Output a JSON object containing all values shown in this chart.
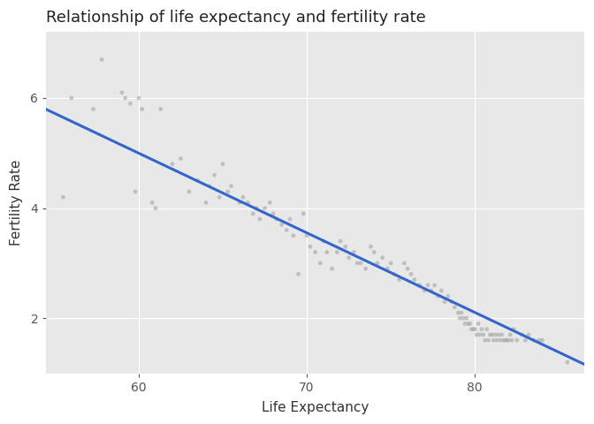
{
  "title": "Relationship of life expectancy and fertility rate",
  "xlabel": "Life Expectancy",
  "ylabel": "Fertility Rate",
  "xlim": [
    54.5,
    86.5
  ],
  "ylim": [
    1.0,
    7.2
  ],
  "xticks": [
    60,
    70,
    80
  ],
  "yticks": [
    2,
    4,
    6
  ],
  "background_color": "#E8E8E8",
  "outer_bg": "#FFFFFF",
  "grid_color": "#FFFFFF",
  "point_color": "#AAAAAA",
  "point_size": 12,
  "point_alpha": 0.65,
  "line_color": "#3366CC",
  "line_width": 2.2,
  "title_fontsize": 13,
  "axis_label_fontsize": 11,
  "tick_fontsize": 10,
  "reg_slope": -0.1447,
  "reg_intercept": 13.68,
  "scatter_x": [
    55.5,
    56.0,
    57.3,
    57.8,
    59.0,
    59.2,
    59.5,
    59.8,
    60.0,
    60.2,
    60.8,
    61.0,
    61.3,
    62.0,
    62.5,
    63.0,
    63.5,
    64.0,
    64.2,
    64.5,
    64.8,
    65.0,
    65.3,
    65.5,
    66.0,
    66.2,
    66.5,
    66.8,
    67.0,
    67.2,
    67.5,
    67.8,
    68.0,
    68.2,
    68.5,
    68.8,
    69.0,
    69.2,
    69.5,
    69.8,
    70.0,
    70.2,
    70.5,
    70.8,
    71.0,
    71.2,
    71.5,
    71.8,
    72.0,
    72.3,
    72.5,
    72.8,
    73.0,
    73.2,
    73.5,
    73.8,
    74.0,
    74.2,
    74.5,
    74.8,
    75.0,
    75.2,
    75.5,
    75.8,
    76.0,
    76.2,
    76.4,
    76.7,
    77.0,
    77.2,
    77.4,
    77.6,
    77.8,
    78.0,
    78.2,
    78.4,
    78.6,
    78.8,
    79.0,
    79.1,
    79.2,
    79.3,
    79.4,
    79.5,
    79.6,
    79.7,
    79.8,
    79.9,
    80.0,
    80.1,
    80.2,
    80.3,
    80.4,
    80.5,
    80.6,
    80.7,
    80.8,
    80.9,
    81.0,
    81.1,
    81.2,
    81.3,
    81.4,
    81.5,
    81.6,
    81.7,
    81.8,
    81.9,
    82.0,
    82.1,
    82.2,
    82.3,
    82.5,
    82.8,
    83.0,
    83.2,
    83.5,
    83.8,
    84.0,
    85.5
  ],
  "scatter_y": [
    4.2,
    6.0,
    5.8,
    6.7,
    6.1,
    6.0,
    5.9,
    4.3,
    6.0,
    5.8,
    4.1,
    4.0,
    5.8,
    4.8,
    4.9,
    4.3,
    4.5,
    4.1,
    4.4,
    4.6,
    4.2,
    4.8,
    4.3,
    4.4,
    4.1,
    4.2,
    4.1,
    3.9,
    4.0,
    3.8,
    4.0,
    4.1,
    3.9,
    3.8,
    3.7,
    3.6,
    3.8,
    3.5,
    2.8,
    3.9,
    3.5,
    3.3,
    3.2,
    3.0,
    3.4,
    3.2,
    2.9,
    3.2,
    3.4,
    3.3,
    3.1,
    3.2,
    3.0,
    3.0,
    2.9,
    3.3,
    3.2,
    3.0,
    3.1,
    2.9,
    3.0,
    2.8,
    2.7,
    3.0,
    2.9,
    2.8,
    2.7,
    2.6,
    2.5,
    2.6,
    2.5,
    2.6,
    2.4,
    2.5,
    2.3,
    2.4,
    2.3,
    2.2,
    2.1,
    2.0,
    2.1,
    2.0,
    1.9,
    2.0,
    1.9,
    1.9,
    1.8,
    1.8,
    1.8,
    1.7,
    1.9,
    1.7,
    1.8,
    1.7,
    1.6,
    1.8,
    1.6,
    1.7,
    1.7,
    1.6,
    1.7,
    1.6,
    1.7,
    1.6,
    1.7,
    1.6,
    1.6,
    1.6,
    1.6,
    1.7,
    1.6,
    1.8,
    1.6,
    1.7,
    1.6,
    1.7,
    1.6,
    1.6,
    1.6,
    1.2
  ]
}
